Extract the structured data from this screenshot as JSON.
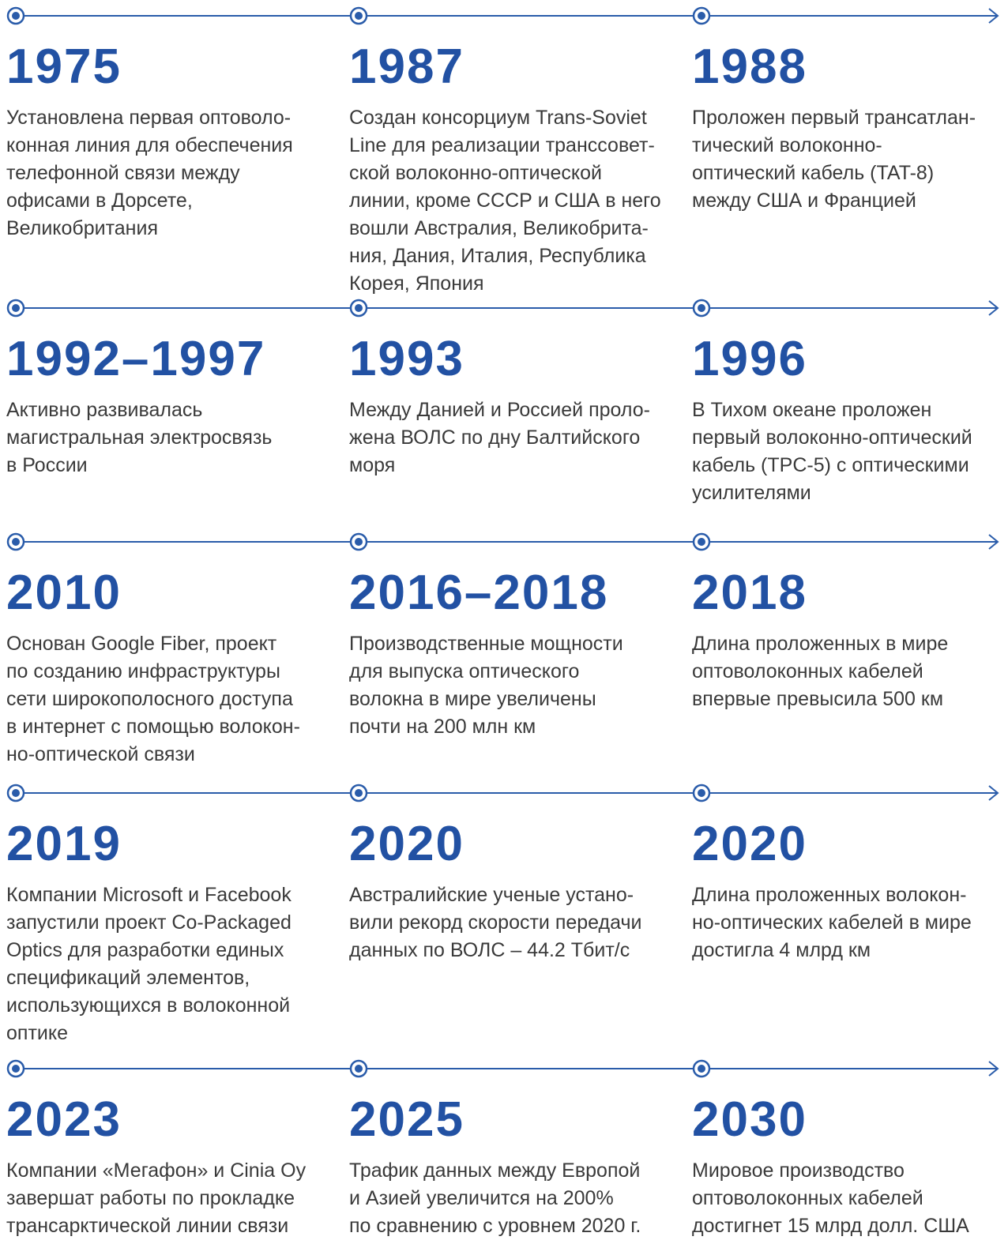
{
  "rows": [
    {
      "items": [
        {
          "year": "1975",
          "lines": [
            "Установлена первая оптоволо-",
            "конная линия для обеспечения",
            "телефонной связи между",
            "офисами в Дорсете,",
            "Великобритания"
          ]
        },
        {
          "year": "1987",
          "lines": [
            "Создан консорциум Trans-Soviet",
            "Line для реализации транссовет-",
            "ской волоконно-оптической",
            "линии, кроме СССР и США в него",
            "вошли Австралия, Великобрита-",
            "ния, Дания, Италия, Республика",
            "Корея, Япония"
          ]
        },
        {
          "year": "1988",
          "lines": [
            "Проложен первый трансатлан-",
            "тический волоконно-",
            "оптический кабель (TAT-8)",
            "между США и Францией"
          ]
        }
      ]
    },
    {
      "items": [
        {
          "year": "1992–1997",
          "lines": [
            "Активно развивалась",
            "магистральная электросвязь",
            "в России"
          ]
        },
        {
          "year": "1993",
          "lines": [
            "Между Данией и Россией проло-",
            "жена ВОЛС по дну Балтийского",
            "моря"
          ]
        },
        {
          "year": "1996",
          "lines": [
            "В Тихом океане проложен",
            "первый волоконно-оптический",
            "кабель (TPC-5) с оптическими",
            "усилителями"
          ]
        }
      ]
    },
    {
      "items": [
        {
          "year": "2010",
          "lines": [
            "Основан Google Fiber, проект",
            "по созданию инфраструктуры",
            "сети широкополосного доступа",
            "в интернет с помощью волокон-",
            "но-оптической связи"
          ]
        },
        {
          "year": "2016–2018",
          "lines": [
            "Производственные мощности",
            "для выпуска оптического",
            "волокна в мире увеличены",
            "почти на 200 млн км"
          ]
        },
        {
          "year": "2018",
          "lines": [
            "Длина проложенных в мире",
            "оптоволоконных кабелей",
            "впервые превысила 500 км"
          ]
        }
      ]
    },
    {
      "items": [
        {
          "year": "2019",
          "lines": [
            "Компании Microsoft и Facebook",
            "запустили проект Co-Packaged",
            "Optics для разработки единых",
            "спецификаций элементов,",
            "использующихся в волоконной",
            "оптике"
          ]
        },
        {
          "year": "2020",
          "lines": [
            "Австралийские ученые устано-",
            "вили рекорд скорости передачи",
            "данных по ВОЛС – 44.2 Тбит/с"
          ]
        },
        {
          "year": "2020",
          "lines": [
            "Длина проложенных волокон-",
            "но-оптических кабелей в мире",
            "достигла 4 млрд км"
          ]
        }
      ]
    },
    {
      "items": [
        {
          "year": "2023",
          "lines": [
            "Компании «Мегафон» и Cinia Oy",
            "завершат работы по прокладке",
            "трансарктической линии связи"
          ]
        },
        {
          "year": "2025",
          "lines": [
            "Трафик данных между Европой",
            "и Азией увеличится на 200%",
            "по сравнению с уровнем 2020 г."
          ]
        },
        {
          "year": "2030",
          "lines": [
            "Мировое производство",
            "оптоволоконных кабелей",
            "достигнет 15 млрд долл. США"
          ]
        }
      ]
    }
  ]
}
